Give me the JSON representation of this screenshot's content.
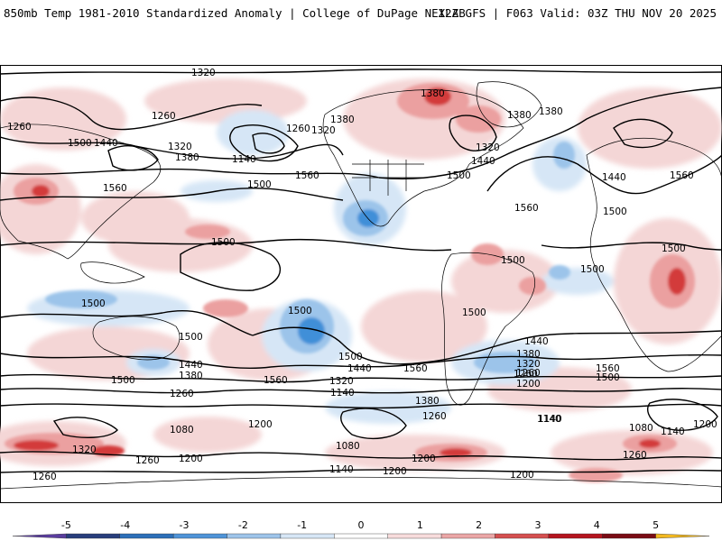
{
  "header": {
    "left_title": "850mb Temp 1981-2010 Standardized Anomaly | College of DuPage NEXLAB",
    "right_title": "12Z GFS | F063 Valid: 03Z THU NOV 20 2025"
  },
  "map": {
    "field": "850mb temperature standardized anomaly (shaded) and geopotential height contours (black)",
    "contour_labels": [
      "1320",
      "1260",
      "1260",
      "1500",
      "1440",
      "1320",
      "1380",
      "1140",
      "1260",
      "1320",
      "1380",
      "1380",
      "1380",
      "1380",
      "1320",
      "1440",
      "1560",
      "1500",
      "1560",
      "1560",
      "1440",
      "1560",
      "1500",
      "1500",
      "1500",
      "1500",
      "1500",
      "1500",
      "1500",
      "1500",
      "1500",
      "1500",
      "1500",
      "1440",
      "1380",
      "1500",
      "1560",
      "1440",
      "1320",
      "1260",
      "1140",
      "1560",
      "1380",
      "1260",
      "1260",
      "1140",
      "1200",
      "1080",
      "1200",
      "1320",
      "1260",
      "1080",
      "1200",
      "1140",
      "1200",
      "1440",
      "1380",
      "1320",
      "1260",
      "1200",
      "1140",
      "1560",
      "1500",
      "1080",
      "1140",
      "1200",
      "1260",
      "1200",
      "1260"
    ],
    "colors": {
      "ocean_neutral": "#ffffff",
      "weak_positive": "#f4d6d6",
      "moderate_positive": "#eba0a0",
      "strong_positive": "#d33a3a",
      "extreme_positive": "#8e0f1a",
      "weak_negative": "#d6e6f6",
      "moderate_negative": "#9cc4ea",
      "strong_negative": "#3f8fd8",
      "contour": "#000000",
      "coast": "#000000"
    }
  },
  "colorbar": {
    "ticks": [
      "-5",
      "-4",
      "-3",
      "-2",
      "-1",
      "0",
      "1",
      "2",
      "3",
      "4",
      "5"
    ],
    "segment_colors": [
      "#5a3d9e",
      "#283e7c",
      "#2c6fb8",
      "#4f94d8",
      "#9ec4ea",
      "#d7e7f6",
      "#ffffff",
      "#f7dcdc",
      "#eba6a6",
      "#d55050",
      "#b4141e",
      "#7a0c14",
      "#f2b820"
    ]
  }
}
